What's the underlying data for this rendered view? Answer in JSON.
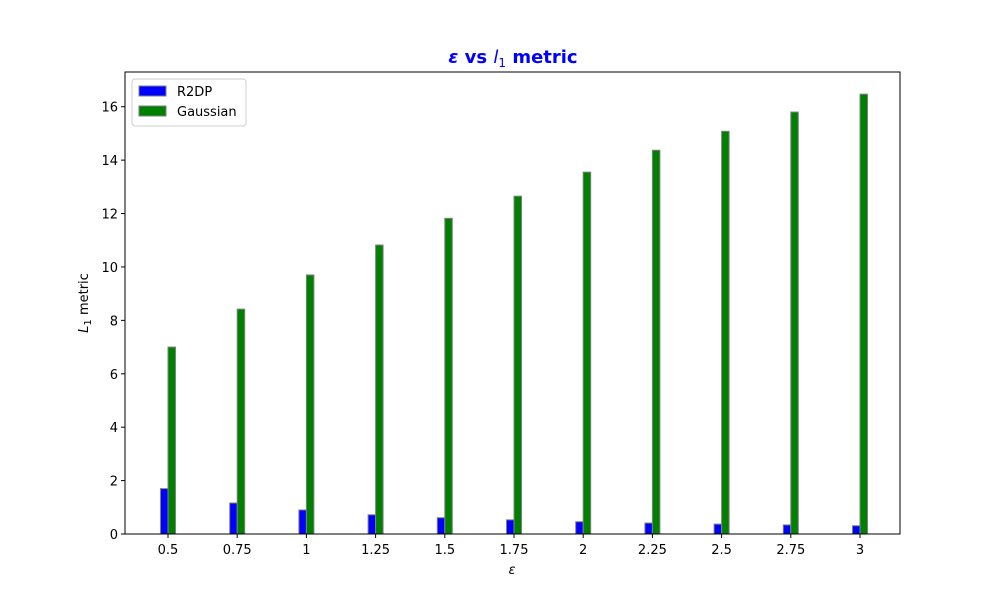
{
  "chart_data": {
    "type": "bar",
    "title_parts": {
      "epsilon": "ε",
      "vs": " vs ",
      "l": "l",
      "sub": "1",
      "metric": " metric"
    },
    "title_color": "#0000ff",
    "xlabel": "ε",
    "ylabel_parts": {
      "L": "L",
      "sub": "1",
      "rest": " metric"
    },
    "categories": [
      "0.5",
      "0.75",
      "1",
      "1.25",
      "1.5",
      "1.75",
      "2",
      "2.25",
      "2.5",
      "2.75",
      "3"
    ],
    "series": [
      {
        "name": "R2DP",
        "color": "#0000ff",
        "values": [
          1.7,
          1.16,
          0.9,
          0.72,
          0.61,
          0.53,
          0.46,
          0.41,
          0.37,
          0.34,
          0.31
        ]
      },
      {
        "name": "Gaussian",
        "color": "#008000",
        "values": [
          7.0,
          8.42,
          9.7,
          10.82,
          11.82,
          12.65,
          13.55,
          14.37,
          15.08,
          15.8,
          16.47
        ]
      }
    ],
    "bar_edge_color": "#808080",
    "ylim": [
      0,
      17.3
    ],
    "yticks": [
      0,
      2,
      4,
      6,
      8,
      10,
      12,
      14,
      16
    ],
    "grid": false,
    "legend_position": "upper-left"
  }
}
